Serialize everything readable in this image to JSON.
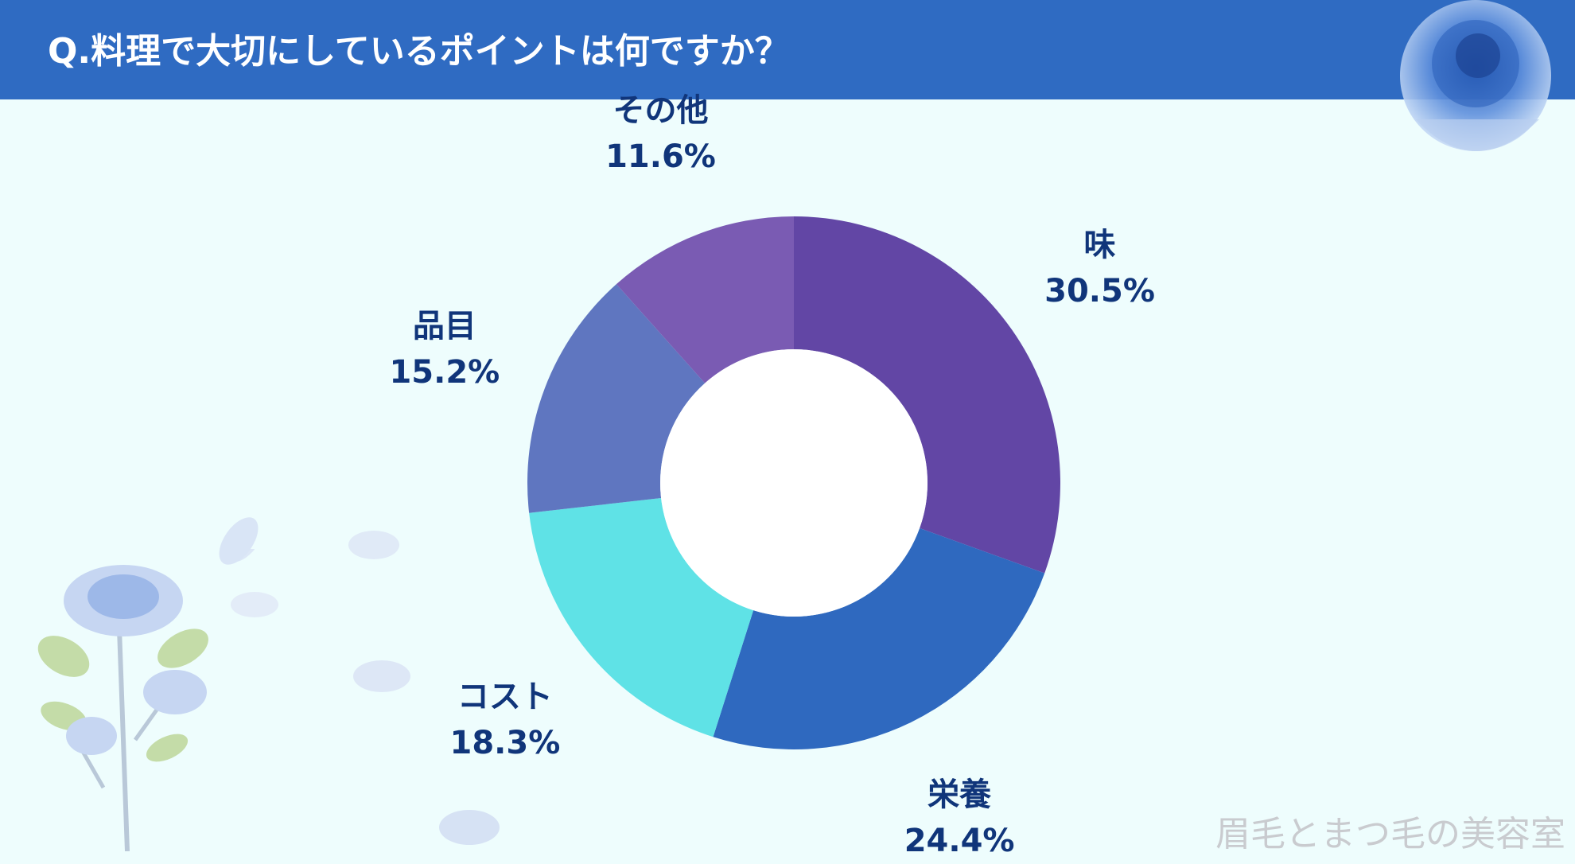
{
  "header": {
    "title": "Q.料理で大切にしているポイントは何ですか？"
  },
  "chart_data": {
    "type": "pie",
    "subtype": "donut",
    "categories": [
      "味",
      "栄養",
      "コスト",
      "品目",
      "その他"
    ],
    "values": [
      30.5,
      24.4,
      18.3,
      15.2,
      11.6
    ],
    "value_labels": [
      "30.5%",
      "24.4%",
      "18.3%",
      "15.2%",
      "11.6%"
    ],
    "colors": [
      "#6246a5",
      "#2f69bf",
      "#5fe2e6",
      "#5f76c0",
      "#7a5bb3"
    ],
    "legend": "none"
  },
  "watermark": "眉毛とまつ毛の美容室",
  "decor": {
    "rose_color": "#7da0dc",
    "leaf_color": "#c4dca8"
  }
}
